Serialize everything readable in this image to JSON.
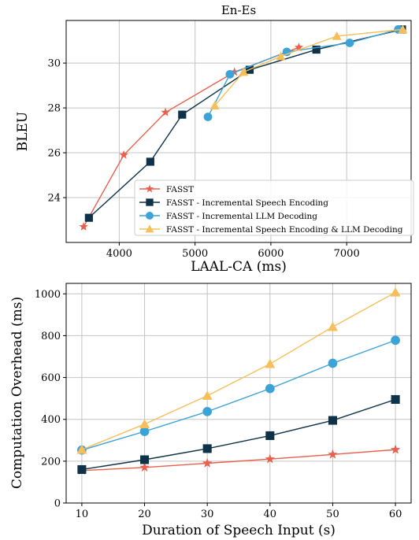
{
  "colors": {
    "FASST": "#e8604e",
    "Incremental Speech Encoding": "#0e3348",
    "Incremental LLM Decoding": "#3ba3d6",
    "Incremental Speech Encoding & LLM Decoding": "#f6bf5b"
  },
  "chart_data": [
    {
      "type": "line",
      "title": "En-Es",
      "xlabel": "LAAL-CA (ms)",
      "ylabel": "BLEU",
      "xlim": [
        3300,
        7850
      ],
      "ylim": [
        22.0,
        31.9
      ],
      "xticks": [
        4000,
        5000,
        6000,
        7000
      ],
      "yticks": [
        24,
        26,
        28,
        30
      ],
      "grid": true,
      "legend_position": "lower-right",
      "series": [
        {
          "name": "FASST",
          "marker": "star",
          "x": [
            3530,
            4060,
            4610,
            5520,
            6370
          ],
          "y": [
            22.7,
            25.9,
            27.8,
            29.6,
            30.7
          ]
        },
        {
          "name": "FASST - Incremental Speech Encoding",
          "marker": "square",
          "x": [
            3600,
            4410,
            4830,
            5720,
            6600,
            7730
          ],
          "y": [
            23.1,
            25.6,
            27.7,
            29.7,
            30.6,
            31.5
          ]
        },
        {
          "name": "FASST - Incremental LLM Decoding",
          "marker": "circle",
          "x": [
            5170,
            5460,
            6210,
            7040,
            7680
          ],
          "y": [
            27.6,
            29.5,
            30.5,
            30.9,
            31.5
          ]
        },
        {
          "name": "FASST - Incremental Speech Encoding & LLM Decoding",
          "marker": "triangle",
          "x": [
            5260,
            5640,
            6130,
            6870,
            7740
          ],
          "y": [
            28.1,
            29.6,
            30.3,
            31.2,
            31.5
          ]
        }
      ]
    },
    {
      "type": "line",
      "title": "",
      "xlabel": "Duration of Speech Input (s)",
      "ylabel": "Computation Overhead (ms)",
      "xlim": [
        7.5,
        62.5
      ],
      "ylim": [
        0,
        1050
      ],
      "xticks": [
        10,
        20,
        30,
        40,
        50,
        60
      ],
      "yticks": [
        0,
        200,
        400,
        600,
        800,
        1000
      ],
      "grid": true,
      "x": [
        10,
        20,
        30,
        40,
        50,
        60
      ],
      "series": [
        {
          "name": "FASST",
          "marker": "star",
          "values": [
            155,
            170,
            190,
            210,
            232,
            255
          ]
        },
        {
          "name": "FASST - Incremental Speech Encoding",
          "marker": "square",
          "values": [
            160,
            207,
            260,
            322,
            395,
            495
          ]
        },
        {
          "name": "FASST - Incremental LLM Decoding",
          "marker": "circle",
          "values": [
            253,
            342,
            437,
            547,
            668,
            778
          ]
        },
        {
          "name": "FASST - Incremental Speech Encoding & LLM Decoding",
          "marker": "triangle",
          "values": [
            255,
            377,
            513,
            665,
            842,
            1007
          ]
        }
      ]
    }
  ]
}
